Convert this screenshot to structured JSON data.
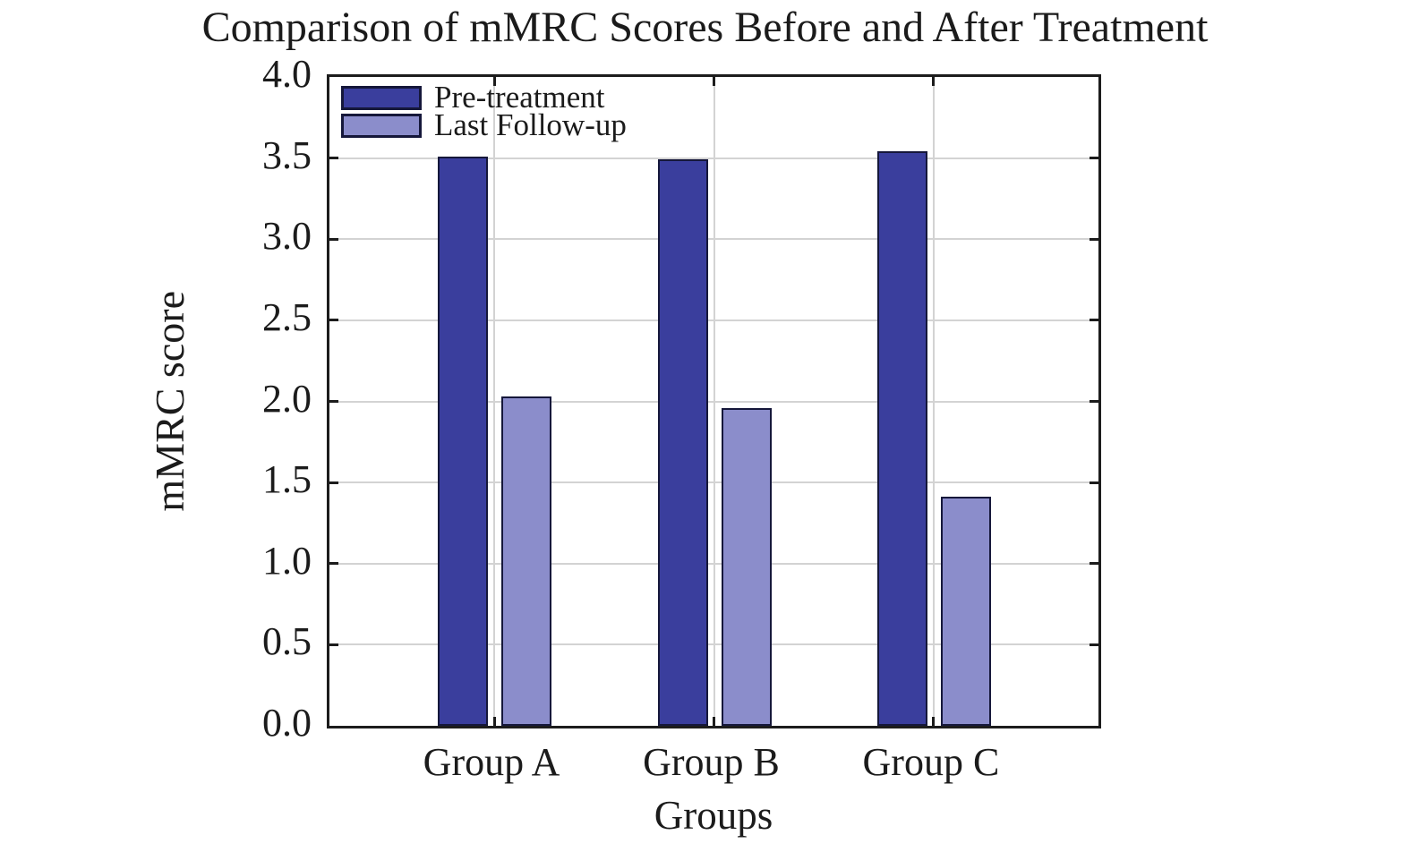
{
  "chart_data": {
    "type": "bar",
    "title": "Comparison of mMRC Scores Before and After Treatment",
    "xlabel": "Groups",
    "ylabel": "mMRC score",
    "categories": [
      "Group A",
      "Group B",
      "Group C"
    ],
    "series": [
      {
        "name": "Pre-treatment",
        "color": "#3a3e9d",
        "values": [
          3.51,
          3.49,
          3.54
        ]
      },
      {
        "name": "Last Follow-up",
        "color": "#8b8dcb",
        "values": [
          2.03,
          1.96,
          1.41
        ]
      }
    ],
    "ylim": [
      0,
      4
    ],
    "ytick_step": 0.5,
    "ytick_labels": [
      "0.0",
      "0.5",
      "1.0",
      "1.5",
      "2.0",
      "2.5",
      "3.0",
      "3.5",
      "4.0"
    ],
    "grid": true,
    "legend_position": "top-left",
    "bar_edge_color": "#15173a",
    "grid_color": "#d3d3d3",
    "axis_color": "#1c1c1c",
    "text_color": "#1b1b1b",
    "background_color": "#ffffff"
  }
}
